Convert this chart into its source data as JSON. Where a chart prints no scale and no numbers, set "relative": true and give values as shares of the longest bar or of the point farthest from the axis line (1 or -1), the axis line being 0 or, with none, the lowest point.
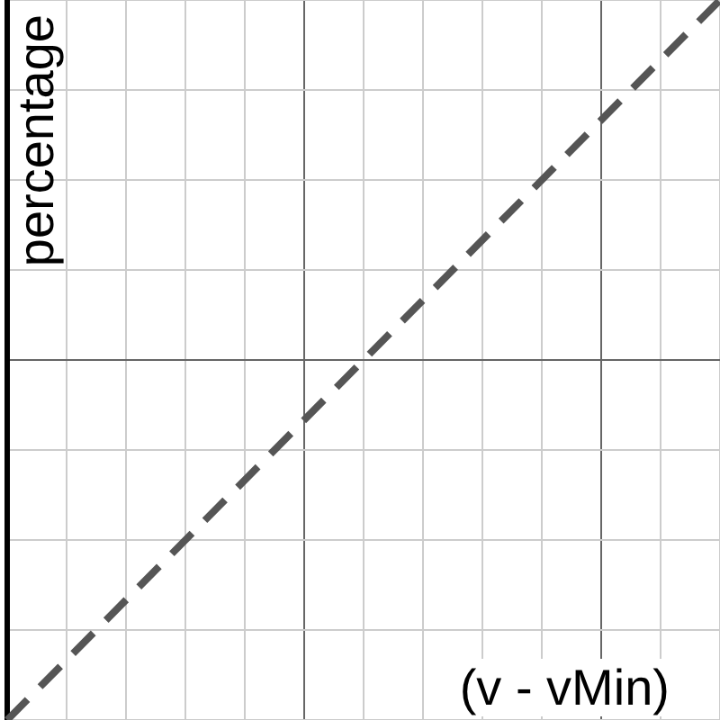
{
  "chart_data": {
    "type": "line",
    "relative": true,
    "xlabel": "(v - vMin)",
    "ylabel": "percentage",
    "grid": true,
    "legend": false,
    "marker": "none",
    "line_style": "dashed",
    "categories": [
      null,
      null,
      null,
      null,
      null,
      null,
      null,
      null,
      null,
      null,
      null,
      null,
      null
    ],
    "series": [
      {
        "color": "#555555",
        "values": [
          0,
          0.0833,
          0.1667,
          0.25,
          0.3333,
          0.4167,
          0.5,
          0.5833,
          0.6667,
          0.75,
          0.8333,
          0.9167,
          1
        ]
      }
    ]
  }
}
